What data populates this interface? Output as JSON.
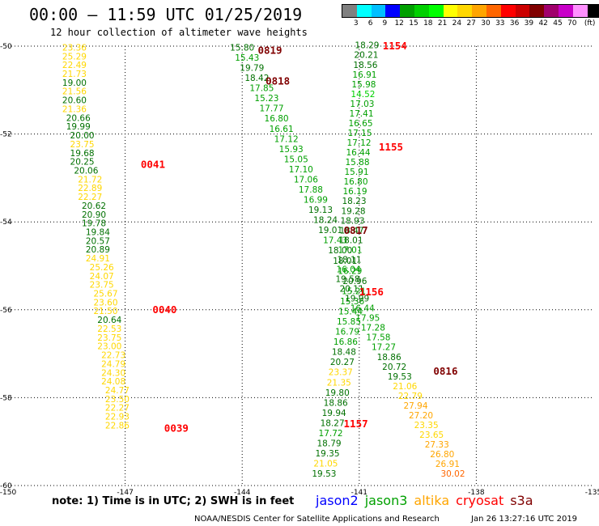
{
  "header": {
    "title": "00:00 – 11:59 UTC 01/25/2019",
    "subtitle": "12 hour collection of altimeter wave heights"
  },
  "legend": {
    "colors": [
      "#808080",
      "#00ffff",
      "#00bfff",
      "#0000ff",
      "#00a000",
      "#00d000",
      "#00ff00",
      "#ffff00",
      "#ffd700",
      "#ffa500",
      "#ff6600",
      "#ff0000",
      "#cc0000",
      "#800000",
      "#a0006c",
      "#c800c8",
      "#ff90ff",
      "#000000"
    ],
    "labels": [
      "3",
      "6",
      "9",
      "12",
      "15",
      "18",
      "21",
      "24",
      "27",
      "30",
      "33",
      "36",
      "39",
      "42",
      "45",
      "70",
      "(ft)"
    ]
  },
  "axes": {
    "lon_ticks": [
      "-150",
      "-147",
      "-144",
      "-141",
      "-138",
      "-135"
    ],
    "lat_ticks": [
      "-50",
      "-52",
      "-54",
      "-56",
      "-58",
      "-60"
    ]
  },
  "tracks": [
    {
      "name": "track-0039-0041",
      "points": [
        {
          "lat": -50.1,
          "lon": -148.3,
          "v": "23.36",
          "c": "#ffd700"
        },
        {
          "lat": -50.3,
          "lon": -148.3,
          "v": "25.29",
          "c": "#ffd700"
        },
        {
          "lat": -50.5,
          "lon": -148.3,
          "v": "22.49",
          "c": "#ffd700"
        },
        {
          "lat": -50.7,
          "lon": -148.3,
          "v": "21.73",
          "c": "#ffd700"
        },
        {
          "lat": -50.9,
          "lon": -148.3,
          "v": "19.00",
          "c": "#007000"
        },
        {
          "lat": -51.1,
          "lon": -148.3,
          "v": "21.56",
          "c": "#ffd700"
        },
        {
          "lat": -51.3,
          "lon": -148.3,
          "v": "20.60",
          "c": "#007000"
        },
        {
          "lat": -51.5,
          "lon": -148.3,
          "v": "21.36",
          "c": "#ffd700"
        },
        {
          "lat": -51.7,
          "lon": -148.2,
          "v": "20.66",
          "c": "#007000"
        },
        {
          "lat": -51.9,
          "lon": -148.2,
          "v": "19.99",
          "c": "#007000"
        },
        {
          "lat": -52.1,
          "lon": -148.1,
          "v": "20.00",
          "c": "#007000"
        },
        {
          "lat": -52.3,
          "lon": -148.1,
          "v": "23.75",
          "c": "#ffd700"
        },
        {
          "lat": -52.5,
          "lon": -148.1,
          "v": "19.68",
          "c": "#007000"
        },
        {
          "lat": -52.7,
          "lon": -148.1,
          "v": "20.25",
          "c": "#007000"
        },
        {
          "lat": -52.9,
          "lon": -148.0,
          "v": "20.06",
          "c": "#007000"
        },
        {
          "lat": -53.1,
          "lon": -147.9,
          "v": "21.72",
          "c": "#ffd700"
        },
        {
          "lat": -53.3,
          "lon": -147.9,
          "v": "22.89",
          "c": "#ffd700"
        },
        {
          "lat": -53.5,
          "lon": -147.9,
          "v": "22.27",
          "c": "#ffd700"
        },
        {
          "lat": -53.7,
          "lon": -147.8,
          "v": "20.62",
          "c": "#007000"
        },
        {
          "lat": -53.9,
          "lon": -147.8,
          "v": "20.90",
          "c": "#007000"
        },
        {
          "lat": -54.1,
          "lon": -147.8,
          "v": "19.78",
          "c": "#007000"
        },
        {
          "lat": -54.3,
          "lon": -147.7,
          "v": "19.84",
          "c": "#007000"
        },
        {
          "lat": -54.5,
          "lon": -147.7,
          "v": "20.57",
          "c": "#007000"
        },
        {
          "lat": -54.7,
          "lon": -147.7,
          "v": "20.89",
          "c": "#007000"
        },
        {
          "lat": -54.9,
          "lon": -147.7,
          "v": "24.91",
          "c": "#ffd700"
        },
        {
          "lat": -55.1,
          "lon": -147.6,
          "v": "25.26",
          "c": "#ffd700"
        },
        {
          "lat": -55.3,
          "lon": -147.6,
          "v": "24.07",
          "c": "#ffd700"
        },
        {
          "lat": -55.5,
          "lon": -147.6,
          "v": "23.75",
          "c": "#ffd700"
        },
        {
          "lat": -55.7,
          "lon": -147.5,
          "v": "25.67",
          "c": "#ffd700"
        },
        {
          "lat": -55.9,
          "lon": -147.5,
          "v": "23.60",
          "c": "#ffd700"
        },
        {
          "lat": -56.1,
          "lon": -147.5,
          "v": "21.50",
          "c": "#ffd700"
        },
        {
          "lat": -56.3,
          "lon": -147.4,
          "v": "20.64",
          "c": "#007000"
        },
        {
          "lat": -56.5,
          "lon": -147.4,
          "v": "22.53",
          "c": "#ffd700"
        },
        {
          "lat": -56.7,
          "lon": -147.4,
          "v": "23.75",
          "c": "#ffd700"
        },
        {
          "lat": -56.9,
          "lon": -147.4,
          "v": "23.00",
          "c": "#ffd700"
        },
        {
          "lat": -57.1,
          "lon": -147.3,
          "v": "22.73",
          "c": "#ffd700"
        },
        {
          "lat": -57.3,
          "lon": -147.3,
          "v": "24.79",
          "c": "#ffd700"
        },
        {
          "lat": -57.5,
          "lon": -147.3,
          "v": "24.30",
          "c": "#ffd700"
        },
        {
          "lat": -57.7,
          "lon": -147.3,
          "v": "24.08",
          "c": "#ffd700"
        },
        {
          "lat": -57.9,
          "lon": -147.2,
          "v": "24.77",
          "c": "#ffd700"
        },
        {
          "lat": -58.1,
          "lon": -147.2,
          "v": "23.50",
          "c": "#ffd700"
        },
        {
          "lat": -58.3,
          "lon": -147.2,
          "v": "22.27",
          "c": "#ffd700"
        },
        {
          "lat": -58.5,
          "lon": -147.2,
          "v": "22.93",
          "c": "#ffd700"
        },
        {
          "lat": -58.7,
          "lon": -147.2,
          "v": "22.86",
          "c": "#ffd700"
        }
      ]
    }
  ],
  "time_labels": [
    {
      "text": "0041",
      "lat": -52.7,
      "lon": -146.6,
      "c": "#ff0000"
    },
    {
      "text": "0040",
      "lat": -56.0,
      "lon": -146.3,
      "c": "#ff0000"
    },
    {
      "text": "0039",
      "lat": -58.7,
      "lon": -146.0,
      "c": "#ff0000"
    },
    {
      "text": "0819",
      "lat": -50.1,
      "lon": -143.6,
      "c": "#800000"
    },
    {
      "text": "0818",
      "lat": -50.8,
      "lon": -143.4,
      "c": "#800000"
    },
    {
      "text": "0817",
      "lat": -54.2,
      "lon": -141.4,
      "c": "#800000"
    },
    {
      "text": "0816",
      "lat": -57.4,
      "lon": -139.1,
      "c": "#800000"
    },
    {
      "text": "1154",
      "lat": -50.0,
      "lon": -140.4,
      "c": "#ff0000"
    },
    {
      "text": "1155",
      "lat": -52.3,
      "lon": -140.5,
      "c": "#ff0000"
    },
    {
      "text": "1156",
      "lat": -55.6,
      "lon": -141.0,
      "c": "#ff0000"
    },
    {
      "text": "1157",
      "lat": -58.6,
      "lon": -141.4,
      "c": "#ff0000"
    }
  ],
  "values_jason3_0816_0819": [
    [
      "15.80",
      "#007000"
    ],
    [
      "15.43",
      "#00a000"
    ],
    [
      "19.79",
      "#007000"
    ],
    [
      "18.42",
      "#007000"
    ],
    [
      "17.85",
      "#00a000"
    ],
    [
      "15.23",
      "#00a000"
    ],
    [
      "17.77",
      "#00a000"
    ],
    [
      "16.80",
      "#00a000"
    ],
    [
      "16.61",
      "#00a000"
    ],
    [
      "17.12",
      "#00a000"
    ],
    [
      "15.93",
      "#00a000"
    ],
    [
      "15.05",
      "#00a000"
    ],
    [
      "17.10",
      "#00a000"
    ],
    [
      "17.06",
      "#00a000"
    ],
    [
      "17.88",
      "#00a000"
    ],
    [
      "16.99",
      "#00a000"
    ],
    [
      "19.13",
      "#007000"
    ],
    [
      "18.24",
      "#007000"
    ],
    [
      "19.01",
      "#007000"
    ],
    [
      "17.43",
      "#00a000"
    ],
    [
      "18.00",
      "#007000"
    ],
    [
      "18.01",
      "#007000"
    ],
    [
      "16.29",
      "#00a000"
    ],
    [
      "20.96",
      "#007000"
    ],
    [
      "15.21",
      "#00a000"
    ],
    [
      "15.36",
      "#00a000"
    ],
    [
      "15.44",
      "#00a000"
    ],
    [
      "15.85",
      "#00a000"
    ],
    [
      "16.79",
      "#00a000"
    ],
    [
      "16.86",
      "#00a000"
    ],
    [
      "18.48",
      "#007000"
    ],
    [
      "20.27",
      "#007000"
    ],
    [
      "23.37",
      "#ffd700"
    ],
    [
      "21.35",
      "#ffd700"
    ],
    [
      "19.80",
      "#007000"
    ],
    [
      "18.86",
      "#007000"
    ],
    [
      "19.94",
      "#007000"
    ],
    [
      "18.27",
      "#007000"
    ],
    [
      "17.72",
      "#00a000"
    ],
    [
      "18.79",
      "#007000"
    ],
    [
      "19.35",
      "#007000"
    ],
    [
      "21.05",
      "#ffd700"
    ],
    [
      "19.53",
      "#007000"
    ]
  ],
  "values_jason3_1154_1157": [
    [
      "18.29",
      "#007000"
    ],
    [
      "20.21",
      "#007000"
    ],
    [
      "18.56",
      "#007000"
    ],
    [
      "16.91",
      "#00a000"
    ],
    [
      "15.98",
      "#00a000"
    ],
    [
      "14.52",
      "#00d000"
    ],
    [
      "17.03",
      "#00a000"
    ],
    [
      "17.41",
      "#00a000"
    ],
    [
      "16.65",
      "#00a000"
    ],
    [
      "17.15",
      "#00a000"
    ],
    [
      "17.12",
      "#00a000"
    ],
    [
      "16.44",
      "#00a000"
    ],
    [
      "15.88",
      "#00a000"
    ],
    [
      "15.91",
      "#00a000"
    ],
    [
      "16.80",
      "#00a000"
    ],
    [
      "16.19",
      "#00a000"
    ],
    [
      "18.23",
      "#007000"
    ],
    [
      "19.28",
      "#007000"
    ],
    [
      "18.93",
      "#007000"
    ],
    [
      "18.47",
      "#007000"
    ],
    [
      "18.01",
      "#007000"
    ],
    [
      "17.01",
      "#00a000"
    ],
    [
      "18.11",
      "#007000"
    ],
    [
      "16.04",
      "#00a000"
    ],
    [
      "19.58",
      "#007000"
    ],
    [
      "20.11",
      "#007000"
    ],
    [
      "19.99",
      "#007000"
    ],
    [
      "16.44",
      "#00a000"
    ],
    [
      "17.95",
      "#00a000"
    ],
    [
      "17.28",
      "#00a000"
    ],
    [
      "17.58",
      "#00a000"
    ],
    [
      "17.27",
      "#00a000"
    ],
    [
      "18.86",
      "#007000"
    ],
    [
      "20.72",
      "#007000"
    ],
    [
      "19.53",
      "#007000"
    ],
    [
      "21.06",
      "#ffd700"
    ],
    [
      "22.79",
      "#ffd700"
    ],
    [
      "27.94",
      "#ffa500"
    ],
    [
      "27.20",
      "#ffa500"
    ],
    [
      "23.35",
      "#ffd700"
    ],
    [
      "23.65",
      "#ffd700"
    ],
    [
      "27.33",
      "#ffa500"
    ],
    [
      "26.80",
      "#ffa500"
    ],
    [
      "26.91",
      "#ffa500"
    ],
    [
      "30.02",
      "#ff6600"
    ]
  ],
  "footer": {
    "note": "note: 1) Time is in UTC; 2) SWH is in feet",
    "satellites": [
      {
        "name": "jason2",
        "color": "#0000ff"
      },
      {
        "name": "jason3",
        "color": "#00a000"
      },
      {
        "name": "altika",
        "color": "#ffa500"
      },
      {
        "name": "cryosat",
        "color": "#ff0000"
      },
      {
        "name": "s3a",
        "color": "#800000"
      }
    ],
    "credit": "NOAA/NESDIS Center for Satellite Applications and Research",
    "timestamp": "Jan 26 13:27:16 UTC 2019"
  }
}
